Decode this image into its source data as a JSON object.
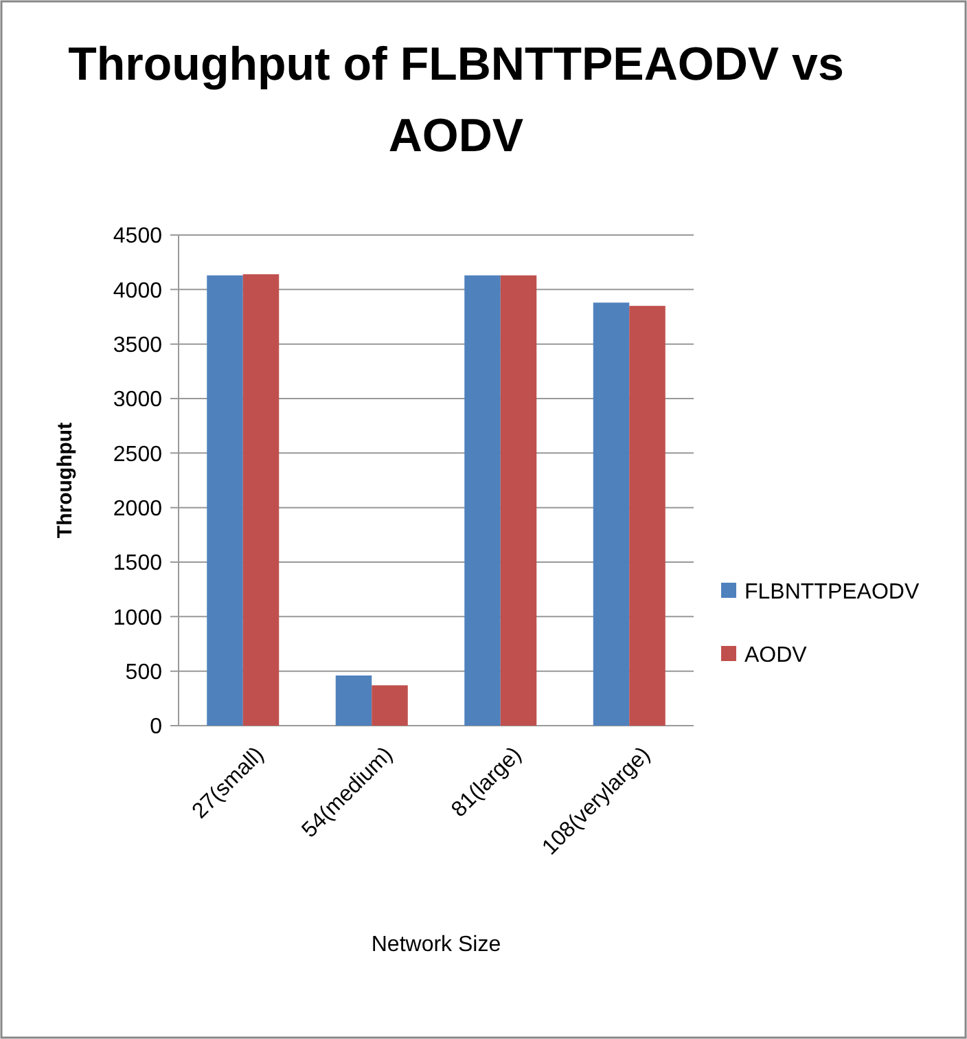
{
  "chart_data": {
    "type": "bar",
    "title": "Throughput of FLBNTTPEAODV vs AODV",
    "xlabel": "Network Size",
    "ylabel": "Throughput",
    "categories": [
      "27(small)",
      "54(medium)",
      "81(large)",
      "108(verylarge)"
    ],
    "series": [
      {
        "name": "FLBNTTPEAODV",
        "color": "#4f81bd",
        "values": [
          4130,
          460,
          4130,
          3880
        ]
      },
      {
        "name": "AODV",
        "color": "#c0504d",
        "values": [
          4140,
          370,
          4130,
          3850
        ]
      }
    ],
    "ylim": [
      0,
      4500
    ],
    "yticks": [
      0,
      500,
      1000,
      1500,
      2000,
      2500,
      3000,
      3500,
      4000,
      4500
    ],
    "grid": "y",
    "legend": "right"
  }
}
